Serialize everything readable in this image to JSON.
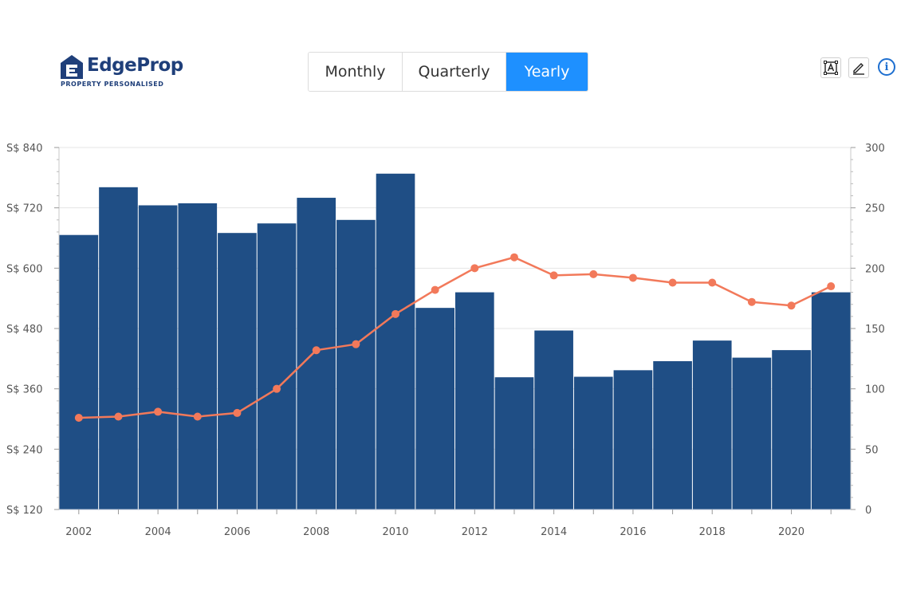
{
  "brand": {
    "name": "EdgeProp",
    "tagline": "PROPERTY PERSONALISED",
    "color": "#1f3f7a"
  },
  "period_tabs": [
    {
      "label": "Monthly",
      "active": false
    },
    {
      "label": "Quarterly",
      "active": false
    },
    {
      "label": "Yearly",
      "active": true
    }
  ],
  "toolbar": {
    "text_tool_icon": "text-box-icon",
    "edit_tool_icon": "pencil-icon",
    "info_icon": "info-icon",
    "info_glyph": "i"
  },
  "colors": {
    "bar": "#1f4e85",
    "line": "#f2795a",
    "accent": "#1e90ff"
  },
  "chart_data": {
    "type": "bar",
    "categories": [
      "2002",
      "2003",
      "2004",
      "2005",
      "2006",
      "2007",
      "2008",
      "2009",
      "2010",
      "2011",
      "2012",
      "2013",
      "2014",
      "2015",
      "2016",
      "2017",
      "2018",
      "2019",
      "2020",
      "2021"
    ],
    "x_tick_labels": [
      "2002",
      "2004",
      "2006",
      "2008",
      "2010",
      "2012",
      "2014",
      "2016",
      "2018",
      "2020"
    ],
    "series": [
      {
        "type": "bar",
        "axis": "left",
        "values": [
          666,
          761,
          725,
          729,
          670,
          689,
          740,
          696,
          788,
          521,
          552,
          383,
          476,
          384,
          397,
          415,
          456,
          422,
          437,
          552
        ]
      },
      {
        "type": "line",
        "axis": "right",
        "values": [
          76,
          77,
          81,
          77,
          80,
          100,
          132,
          137,
          162,
          182,
          200,
          209,
          194,
          195,
          192,
          188,
          188,
          172,
          169,
          185
        ]
      }
    ],
    "y_left": {
      "ylim": [
        120,
        840
      ],
      "ticks": [
        120,
        240,
        360,
        480,
        600,
        720,
        840
      ],
      "tick_labels": [
        "S$ 120",
        "S$ 240",
        "S$ 360",
        "S$ 480",
        "S$ 600",
        "S$ 720",
        "S$ 840"
      ]
    },
    "y_right": {
      "ylim": [
        0,
        300
      ],
      "ticks": [
        0,
        50,
        100,
        150,
        200,
        250,
        300
      ],
      "tick_labels": [
        "0",
        "50",
        "100",
        "150",
        "200",
        "250",
        "300"
      ]
    },
    "grid": true
  }
}
